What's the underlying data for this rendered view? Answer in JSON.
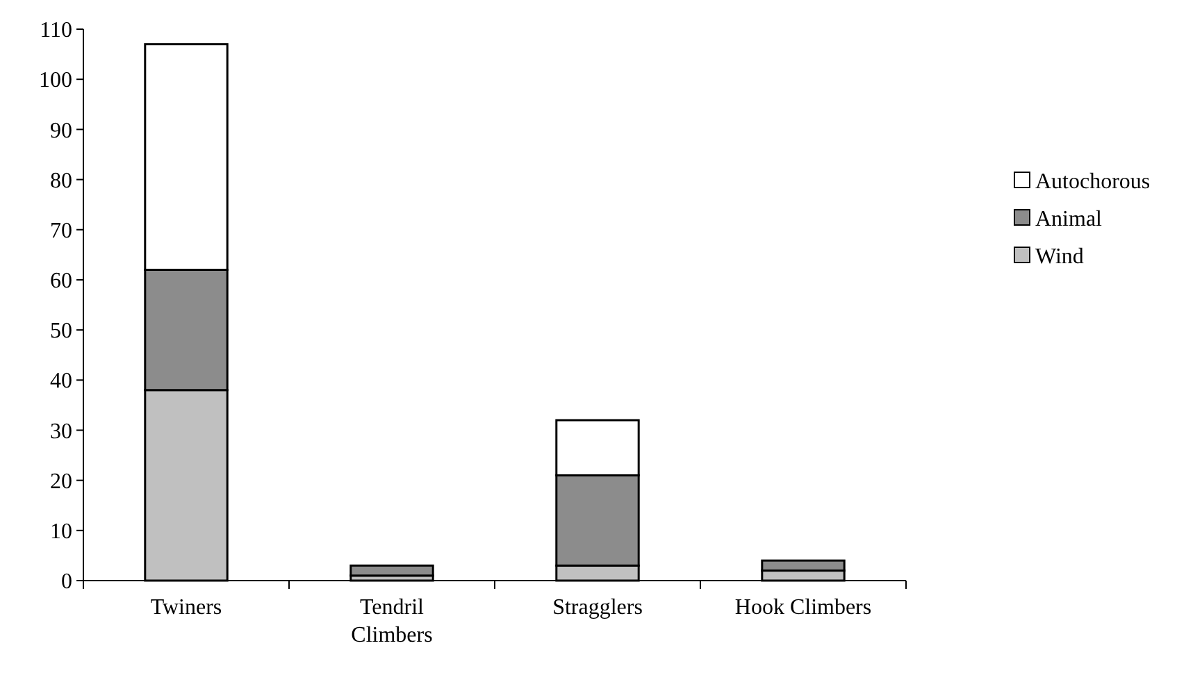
{
  "chart_data": {
    "type": "bar",
    "stacked": true,
    "categories": [
      "Twiners",
      "Tendril Climbers",
      "Stragglers",
      "Hook Climbers"
    ],
    "series": [
      {
        "name": "Wind",
        "color": "#c0c0c0",
        "values": [
          38,
          1,
          3,
          2
        ]
      },
      {
        "name": "Animal",
        "color": "#8c8c8c",
        "values": [
          24,
          2,
          18,
          2
        ]
      },
      {
        "name": "Autochorous",
        "color": "#ffffff",
        "values": [
          45,
          0,
          11,
          0
        ]
      }
    ],
    "ylim": [
      0,
      110
    ],
    "yticks": [
      0,
      10,
      20,
      30,
      40,
      50,
      60,
      70,
      80,
      90,
      100,
      110
    ],
    "legend": "right",
    "grid": false
  }
}
